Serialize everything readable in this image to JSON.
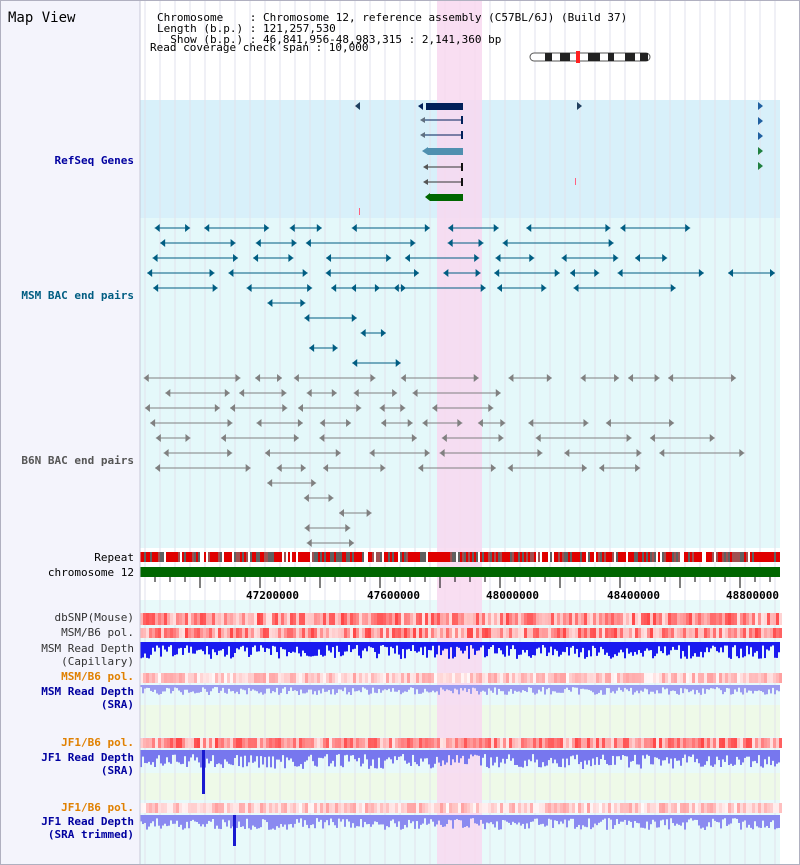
{
  "title": "Map View",
  "header": {
    "line1": "Chromosome    : Chromosome 12, reference assembly (C57BL/6J) (Build 37)",
    "line2": "Length (b.p.) : 121,257,530",
    "line3": "  Show (b.p.) : 46,841,956-48,983,315 : 2,141,360 bp",
    "line4": "Read coverage check span : 10,000"
  },
  "tracks": {
    "refseq": "RefSeq Genes",
    "msm_bac": "MSM BAC end pairs",
    "b6n_bac": "B6N BAC end pairs",
    "repeat": "Repeat",
    "chrom": "chromosome 12",
    "dbsnp": "dbSNP(Mouse)",
    "msm_b6_pol": "MSM/B6 pol.",
    "msm_depth_cap_1": "MSM Read Depth",
    "msm_depth_cap_2": "(Capillary)",
    "msm_b6_pol2": "MSM/B6 pol.",
    "msm_depth_sra_1": "MSM Read Depth",
    "msm_depth_sra_2": "(SRA)",
    "jf1_b6_pol": "JF1/B6 pol.",
    "jf1_depth_sra_1": "JF1 Read Depth",
    "jf1_depth_sra_2": "(SRA)",
    "jf1_b6_pol2": "JF1/B6 pol.",
    "jf1_depth_tr_1": "JF1 Read Depth",
    "jf1_depth_tr_2": "(SRA trimmed)"
  },
  "axis_ticks": [
    "47200000",
    "47600000",
    "48000000",
    "48400000",
    "48800000"
  ],
  "colors": {
    "refseq_bg": "#d8f0fa",
    "bac_bg": "#e4f8fa",
    "highlight": "#f8d8f0",
    "msm_bac": "#005d82",
    "b6n_bac": "#808080",
    "chrom_bar": "#006600",
    "label_blue": "#0000a0",
    "label_orange": "#e08000",
    "label_teal": "#005d82"
  }
}
